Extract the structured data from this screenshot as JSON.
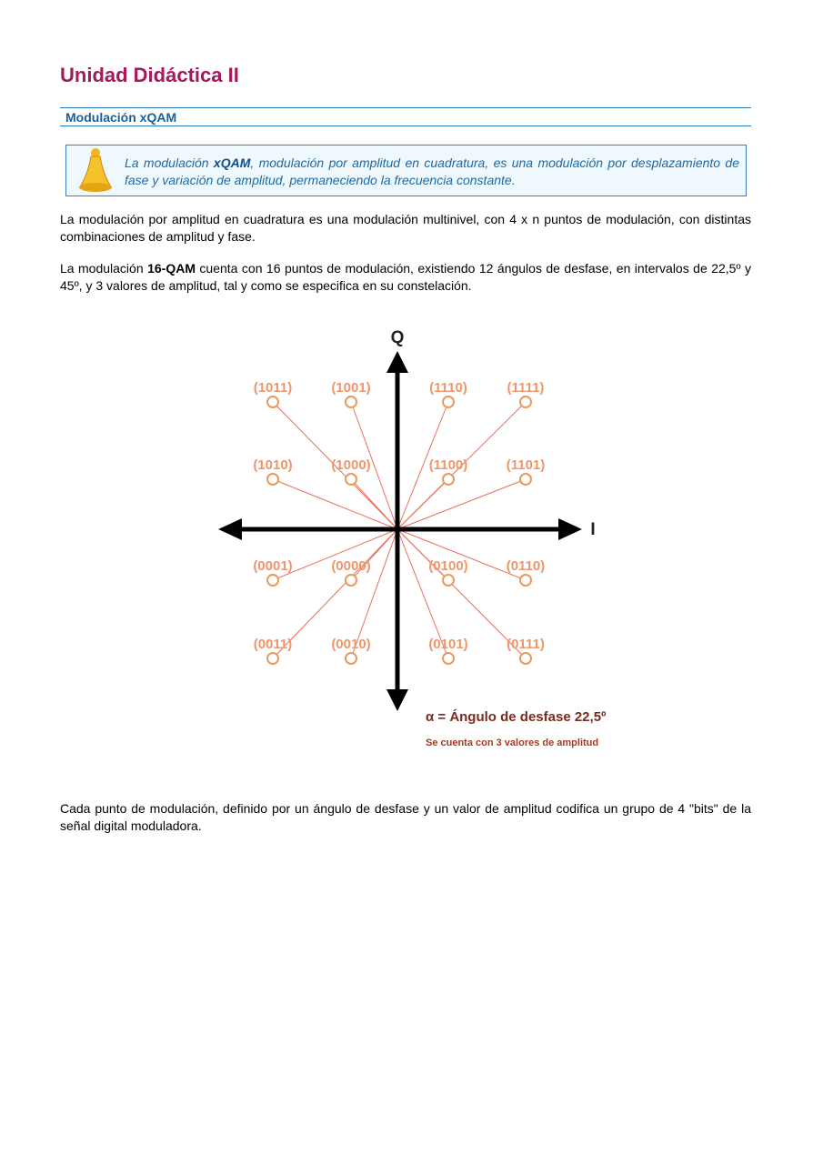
{
  "header": {
    "title": "Unidad Didáctica II",
    "section": "Modulación xQAM"
  },
  "note": [
    "La modulación ",
    "xQAM",
    ", modulación por amplitud en cuadratura, es una modulación por desplazamiento de fase y variación de amplitud, permaneciendo la frecuencia constante."
  ],
  "paragraphs": [
    [
      "La modulación por amplitud en cuadratura es una modulación multinivel, con 4 x n puntos de modulación, con distintas combinaciones de amplitud y fase."
    ],
    [
      "La modulación ",
      "16-QAM",
      " cuenta con 16 puntos de modulación, existiendo 12 ángulos de desfase, en intervalos de 22,5º y 45º, y 3 valores de amplitud, tal y como se especifica en su constelación."
    ],
    [
      "Cada punto de modulación, definido por un ángulo de desfase y un valor de amplitud codifica un grupo de 4 \"bits\" de la señal digital moduladora."
    ]
  ],
  "diagram": {
    "axis_q": "Q",
    "axis_i": "I",
    "points": [
      [
        "(1011)",
        "(1001)",
        "(1110)",
        "(1111)"
      ],
      [
        "(1010)",
        "(1000)",
        "(1100)",
        "(1101)"
      ],
      [
        "(0001)",
        "(0000)",
        "(0100)",
        "(0110)"
      ],
      [
        "(0011)",
        "(0010)",
        "(0101)",
        "(0111)"
      ]
    ],
    "legend": "α = Ángulo de desfase 22,5º",
    "legend_note": "Se cuenta con 3 valores de amplitud"
  }
}
